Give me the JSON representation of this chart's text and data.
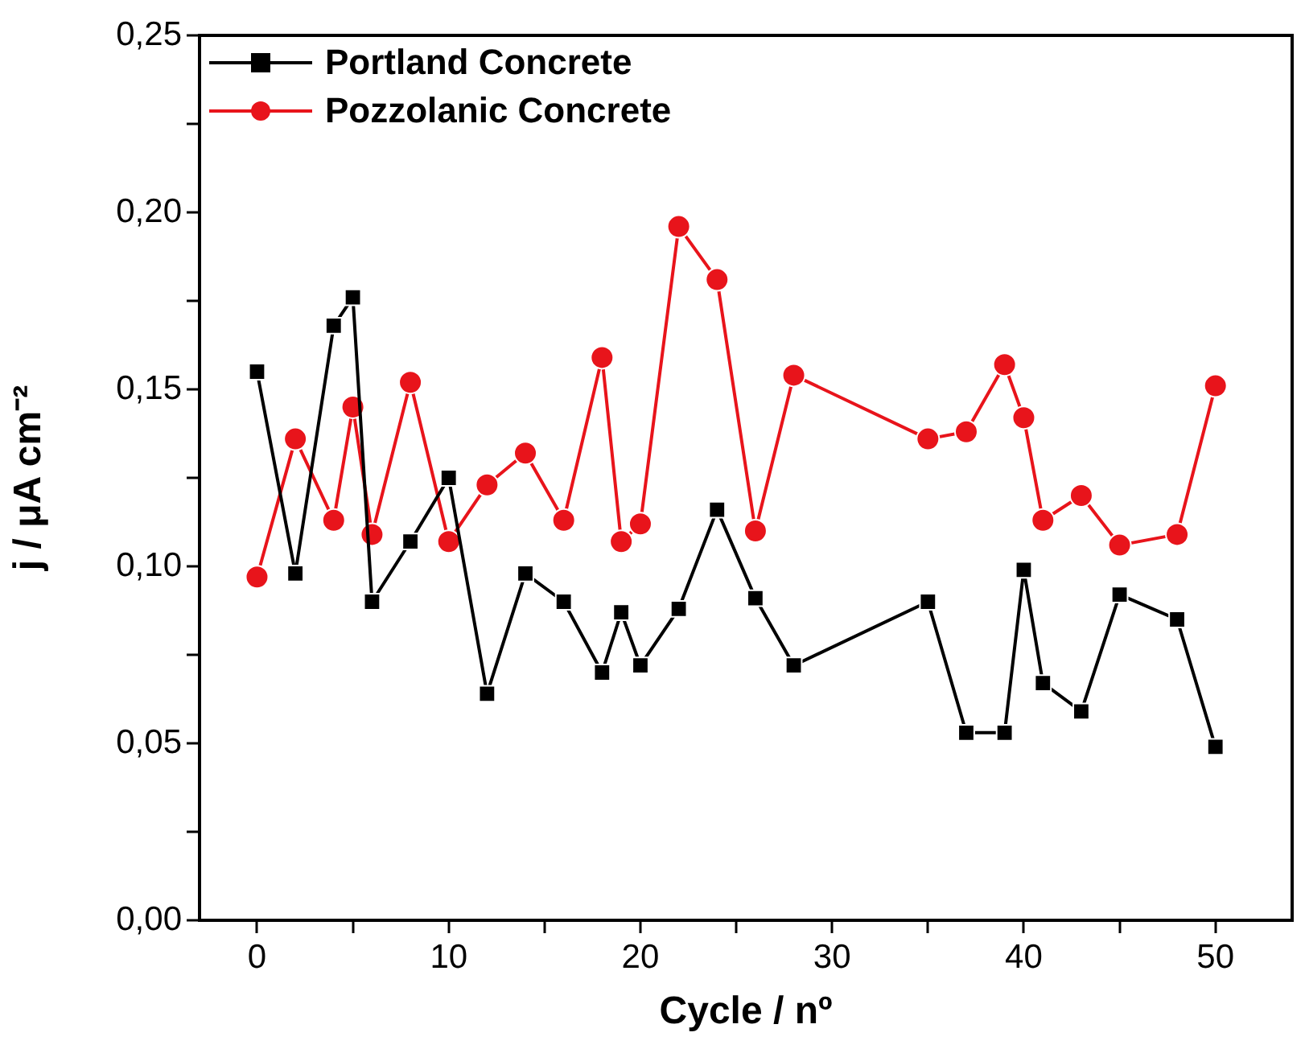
{
  "chart_data": {
    "type": "line",
    "xlabel": "Cycle / nº",
    "ylabel": "j / μA cm⁻²",
    "xlim": [
      -3,
      54
    ],
    "xticks": [
      0,
      {
        "value": 5,
        "label": null
      },
      10,
      {
        "value": 15,
        "label": null
      },
      20,
      {
        "value": 25,
        "label": null
      },
      30,
      {
        "value": 35,
        "label": null
      },
      40,
      {
        "value": 45,
        "label": null
      },
      50
    ],
    "ylim": [
      0,
      0.25
    ],
    "yticks": [
      {
        "value": 0,
        "label": "0,00"
      },
      {
        "value": 0.025,
        "label": null
      },
      {
        "value": 0.05,
        "label": "0,05"
      },
      {
        "value": 0.075,
        "label": null
      },
      {
        "value": 0.1,
        "label": "0,10"
      },
      {
        "value": 0.125,
        "label": null
      },
      {
        "value": 0.15,
        "label": "0,15"
      },
      {
        "value": 0.175,
        "label": null
      },
      {
        "value": 0.2,
        "label": "0,20"
      },
      {
        "value": 0.225,
        "label": null
      },
      {
        "value": 0.25,
        "label": "0,25"
      }
    ],
    "grid": false,
    "legend": "top left",
    "line_style": "solid",
    "series": [
      {
        "name": "Portland Concrete",
        "color": "#000000",
        "marker": "square",
        "x": [
          0,
          2,
          4,
          5,
          6,
          8,
          10,
          12,
          14,
          16,
          18,
          19,
          20,
          22,
          24,
          26,
          28,
          35,
          37,
          39,
          40,
          41,
          43,
          45,
          48,
          50
        ],
        "values": [
          0.155,
          0.098,
          0.168,
          0.176,
          0.09,
          0.107,
          0.125,
          0.064,
          0.098,
          0.09,
          0.07,
          0.087,
          0.072,
          0.088,
          0.116,
          0.091,
          0.072,
          0.09,
          0.053,
          0.053,
          0.099,
          0.067,
          0.059,
          0.092,
          0.085,
          0.049
        ]
      },
      {
        "name": "Pozzolanic Concrete",
        "color": "#e8141b",
        "marker": "circle",
        "x": [
          0,
          2,
          4,
          5,
          6,
          8,
          10,
          12,
          14,
          16,
          18,
          19,
          20,
          22,
          24,
          26,
          28,
          35,
          37,
          39,
          40,
          41,
          43,
          45,
          48,
          50
        ],
        "values": [
          0.097,
          0.136,
          0.113,
          0.145,
          0.109,
          0.152,
          0.107,
          0.123,
          0.132,
          0.113,
          0.159,
          0.107,
          0.112,
          0.196,
          0.181,
          0.11,
          0.154,
          0.136,
          0.138,
          0.157,
          0.142,
          0.113,
          0.12,
          0.106,
          0.109,
          0.151
        ]
      }
    ]
  }
}
